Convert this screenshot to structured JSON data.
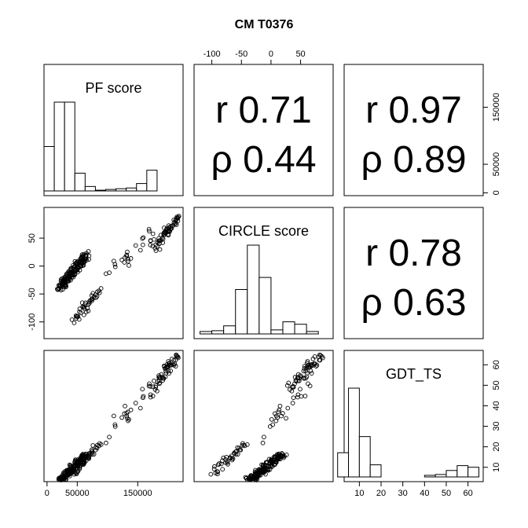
{
  "title": "CM T0376",
  "variables": [
    "PF score",
    "CIRCLE score",
    "GDT_TS"
  ],
  "correlations": [
    {
      "row": 0,
      "col": 1,
      "pearson": "r 0.71",
      "spearman": "ρ 0.44"
    },
    {
      "row": 0,
      "col": 2,
      "pearson": "r 0.97",
      "spearman": "ρ 0.89"
    },
    {
      "row": 1,
      "col": 2,
      "pearson": "r 0.78",
      "spearman": "ρ 0.63"
    }
  ],
  "axes": {
    "pf": {
      "range": [
        -5000,
        225000
      ],
      "ticks": [
        0,
        50000,
        150000
      ],
      "tick_labels": [
        "0",
        "50000",
        "150000"
      ],
      "right_ticks": [
        0,
        50000,
        150000
      ],
      "right_tick_labels": [
        "0",
        "50000",
        "150000"
      ]
    },
    "circle": {
      "range": [
        -130,
        105
      ],
      "ticks": [
        -100,
        -50,
        0,
        50
      ],
      "tick_labels": [
        "-100",
        "-50",
        "0",
        "50"
      ]
    },
    "gdt": {
      "range": [
        3,
        67
      ],
      "ticks": [
        10,
        20,
        30,
        40,
        50,
        60
      ],
      "tick_labels": [
        "10",
        "20",
        "30",
        "40",
        "50",
        "60"
      ]
    }
  },
  "chart_data": {
    "type": "scatter",
    "title": "CM T0376",
    "histograms": [
      {
        "variable": "PF score",
        "bin_edges": [
          -5000,
          12000,
          29000,
          46000,
          63000,
          80000,
          97000,
          114000,
          131000,
          148000,
          165000,
          182000,
          199000,
          216000
        ],
        "counts": [
          60,
          120,
          120,
          24,
          6,
          1,
          2,
          3,
          4,
          10,
          28,
          0,
          0
        ]
      },
      {
        "variable": "CIRCLE score",
        "bin_edges": [
          -120,
          -100,
          -80,
          -60,
          -40,
          -20,
          0,
          20,
          40,
          60,
          80,
          100
        ],
        "counts": [
          3,
          4,
          10,
          55,
          110,
          70,
          5,
          15,
          12,
          3,
          0
        ]
      },
      {
        "variable": "GDT_TS",
        "bin_edges": [
          0,
          5,
          10,
          15,
          20,
          25,
          30,
          35,
          40,
          45,
          50,
          55,
          60,
          65
        ],
        "counts": [
          30,
          110,
          50,
          15,
          0,
          0,
          0,
          0,
          2,
          3,
          8,
          14,
          12
        ]
      }
    ],
    "clusters": [
      {
        "n": 170,
        "pf": [
          20000,
          65000
        ],
        "circle": [
          -40,
          20
        ],
        "gdt": [
          3,
          16
        ]
      },
      {
        "n": 40,
        "pf": [
          45000,
          90000
        ],
        "circle": [
          -95,
          -40
        ],
        "gdt": [
          8,
          22
        ]
      },
      {
        "n": 60,
        "pf": [
          175000,
          220000
        ],
        "circle": [
          30,
          90
        ],
        "gdt": [
          48,
          67
        ]
      },
      {
        "n": 25,
        "pf": [
          95000,
          175000
        ],
        "circle": [
          -20,
          60
        ],
        "gdt": [
          22,
          50
        ]
      }
    ]
  }
}
